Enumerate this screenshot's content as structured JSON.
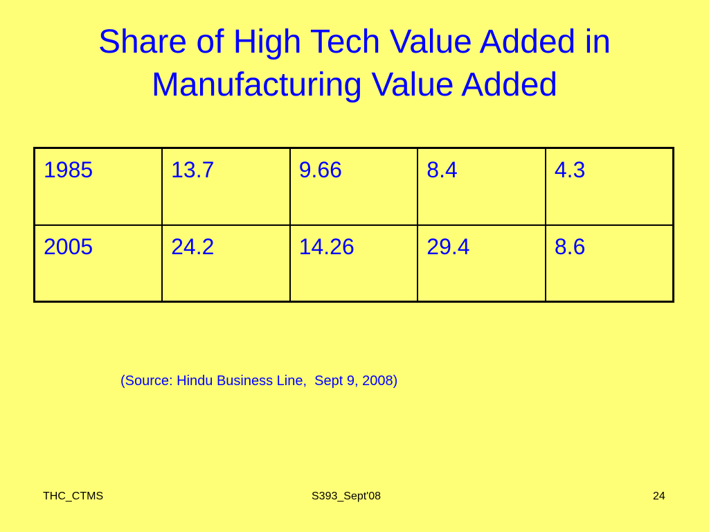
{
  "slide": {
    "title_line1": "Share of High Tech Value Added in",
    "title_line2": "Manufacturing Value Added",
    "table": {
      "rows": [
        [
          "1985",
          "13.7",
          "9.66",
          "8.4",
          "4.3"
        ],
        [
          "2005",
          "24.2",
          "14.26",
          "29.4",
          "8.6"
        ]
      ]
    },
    "source_note": "(Source: Hindu Business Line,  Sept 9, 2008)",
    "footer": {
      "left": "THC_CTMS",
      "center": "S393_Sept'08",
      "right": "24"
    }
  },
  "colors": {
    "background": "#ffff77",
    "text_accent": "#0000ff",
    "border": "#000000"
  }
}
